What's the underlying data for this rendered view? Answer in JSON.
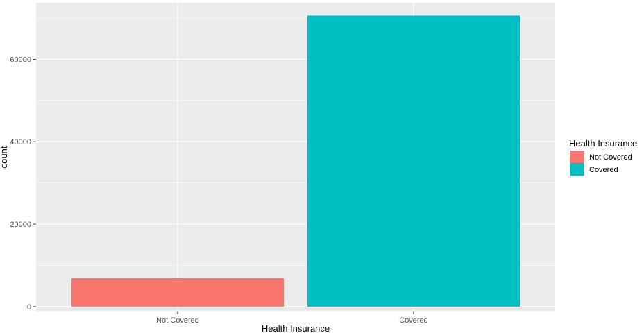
{
  "chart_data": {
    "type": "bar",
    "categories": [
      "Not Covered",
      "Covered"
    ],
    "values": [
      6900,
      70600
    ],
    "colors": [
      "#F8766D",
      "#00BFC4"
    ],
    "xlabel": "Health Insurance",
    "ylabel": "count",
    "ylim": [
      -1200,
      73700
    ],
    "yticks": [
      0,
      20000,
      40000,
      60000
    ],
    "ytick_labels": [
      "0",
      "20000",
      "40000",
      "60000"
    ],
    "grid": true,
    "background": "#EBEBEB",
    "grid_color": "#FFFFFF",
    "legend": {
      "title": "Health Insurance",
      "placement": "right",
      "items": [
        {
          "label": "Not Covered",
          "color": "#F8766D"
        },
        {
          "label": "Covered",
          "color": "#00BFC4"
        }
      ]
    }
  }
}
